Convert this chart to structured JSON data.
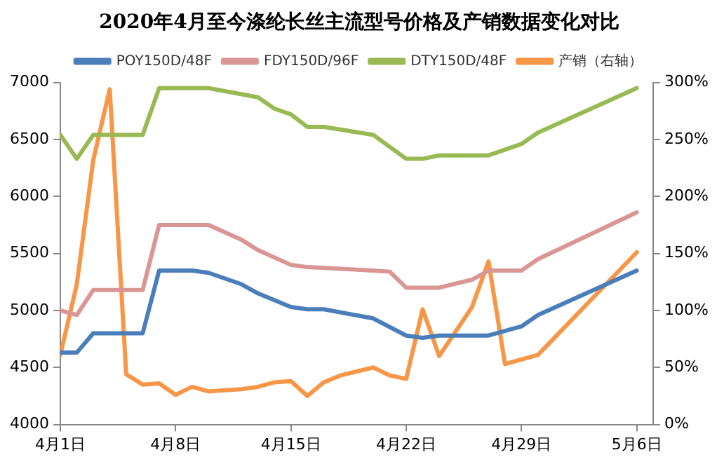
{
  "chart_data": {
    "type": "line",
    "title": "2020年4月至今涤纶长丝主流型号价格及产销数据变化对比",
    "x": [
      "--04-01",
      "--04-02",
      "--04-03",
      "--04-06",
      "--04-07",
      "--04-09",
      "--04-10",
      "--04-12",
      "--04-13",
      "--04-15",
      "--04-16",
      "--04-17",
      "--04-20",
      "--04-22",
      "--04-23",
      "--04-24",
      "--04-27",
      "--04-29",
      "--04-30",
      "--05-06"
    ],
    "series": [
      {
        "name": "POY150D/48F",
        "color": "#4a7ebb",
        "values": [
          4630,
          4630,
          4800,
          4800,
          5350,
          5350,
          5330,
          5230,
          5150,
          5030,
          5010,
          5010,
          4930,
          4780,
          4760,
          4780,
          4780,
          4860,
          4960,
          5350
        ]
      },
      {
        "name": "FDY150D/96F",
        "color": "#d99694",
        "x": [
          "--04-01",
          "--04-02",
          "--04-03",
          "--04-06",
          "--04-07",
          "--04-10",
          "--04-12",
          "--04-13",
          "--04-15",
          "--04-16",
          "--04-20",
          "--04-21",
          "--04-22",
          "--04-24",
          "--04-26",
          "--04-27",
          "--04-29",
          "--04-30",
          "--05-06"
        ],
        "values": [
          5000,
          4960,
          5180,
          5180,
          5750,
          5750,
          5620,
          5530,
          5400,
          5380,
          5350,
          5340,
          5200,
          5200,
          5270,
          5350,
          5350,
          5450,
          5860
        ]
      },
      {
        "name": "DTY150D/48F",
        "color": "#98b954",
        "x": [
          "--04-01",
          "--04-02",
          "--04-03",
          "--04-06",
          "--04-07",
          "--04-10",
          "--04-13",
          "--04-14",
          "--04-15",
          "--04-16",
          "--04-17",
          "--04-20",
          "--04-22",
          "--04-23",
          "--04-24",
          "--04-27",
          "--04-29",
          "--04-30",
          "--05-06"
        ],
        "values": [
          6540,
          6330,
          6540,
          6540,
          6950,
          6950,
          6870,
          6770,
          6720,
          6610,
          6610,
          6540,
          6330,
          6330,
          6360,
          6360,
          6460,
          6560,
          6950
        ]
      },
      {
        "name": "产销（右轴）",
        "color": "#f79646",
        "axis": "y2",
        "x": [
          "--04-01",
          "--04-02",
          "--04-03",
          "--04-04",
          "--04-05",
          "--04-06",
          "--04-07",
          "--04-08",
          "--04-09",
          "--04-10",
          "--04-11",
          "--04-12",
          "--04-13",
          "--04-14",
          "--04-15",
          "--04-16",
          "--04-17",
          "--04-18",
          "--04-20",
          "--04-21",
          "--04-22",
          "--04-23",
          "--04-24",
          "--04-26",
          "--04-27",
          "--04-28",
          "--04-30",
          "--05-06"
        ],
        "values": [
          61,
          123,
          232,
          294,
          44,
          35,
          36,
          26,
          33,
          29,
          30,
          31,
          33,
          37,
          38,
          25,
          37,
          43,
          50,
          43,
          40,
          101,
          60,
          103,
          143,
          53,
          61,
          151
        ]
      }
    ],
    "xlim": [
      "--04-01",
      "--05-07"
    ],
    "xticks": [
      {
        "value": "--04-01",
        "label": "4月1日"
      },
      {
        "value": "--04-08",
        "label": "4月8日"
      },
      {
        "value": "--04-15",
        "label": "4月15日"
      },
      {
        "value": "--04-22",
        "label": "4月22日"
      },
      {
        "value": "--04-29",
        "label": "4月29日"
      },
      {
        "value": "--05-06",
        "label": "5月6日"
      }
    ],
    "ylim": [
      4000,
      7000
    ],
    "yticks": [
      4000,
      4500,
      5000,
      5500,
      6000,
      6500,
      7000
    ],
    "y2lim": [
      0,
      300
    ],
    "y2ticks": [
      {
        "value": 0,
        "label": "0%"
      },
      {
        "value": 50,
        "label": "50%"
      },
      {
        "value": 100,
        "label": "100%"
      },
      {
        "value": 150,
        "label": "150%"
      },
      {
        "value": 200,
        "label": "200%"
      },
      {
        "value": 250,
        "label": "250%"
      },
      {
        "value": 300,
        "label": "300%"
      }
    ],
    "grid": false,
    "legend": "top",
    "marker": "none",
    "line_style": "solid"
  }
}
